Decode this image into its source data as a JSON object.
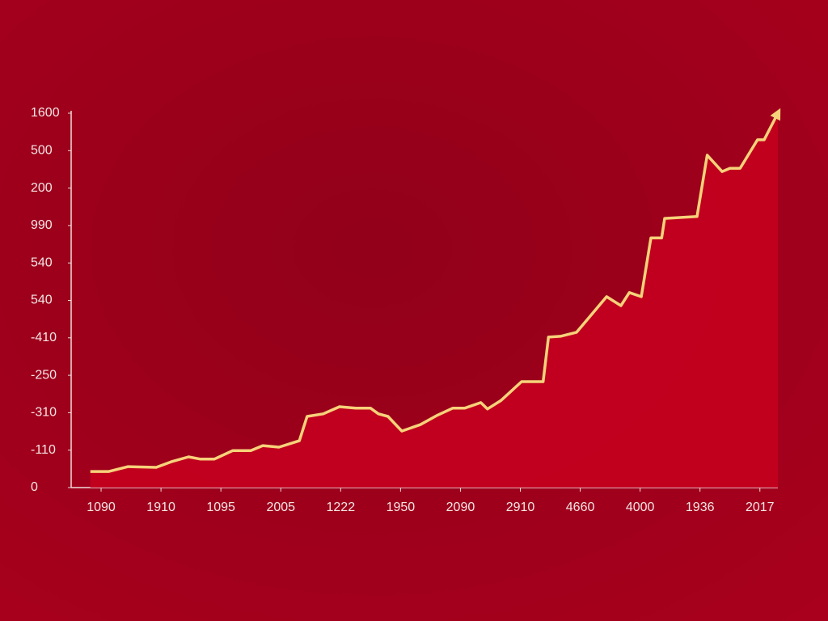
{
  "chart_data": {
    "type": "area",
    "x": [
      0.82,
      1.13,
      1.45,
      1.92,
      2.17,
      2.46,
      2.66,
      2.89,
      3.2,
      3.5,
      3.7,
      3.97,
      4.31,
      4.44,
      4.71,
      4.98,
      5.25,
      5.5,
      5.63,
      5.79,
      6.02,
      6.33,
      6.6,
      6.87,
      7.07,
      7.34,
      7.45,
      7.68,
      8.02,
      8.38,
      8.47,
      8.67,
      8.94,
      9.44,
      9.68,
      9.82,
      10.02,
      10.18,
      10.36,
      10.41,
      10.95,
      11.12,
      11.37,
      11.5,
      11.67,
      11.96,
      12.07,
      12.3
    ],
    "values": [
      0.43,
      0.43,
      0.56,
      0.54,
      0.69,
      0.82,
      0.76,
      0.76,
      0.99,
      0.99,
      1.12,
      1.08,
      1.25,
      1.9,
      1.97,
      2.16,
      2.12,
      2.12,
      1.97,
      1.9,
      1.51,
      1.68,
      1.92,
      2.12,
      2.12,
      2.27,
      2.1,
      2.33,
      2.83,
      2.83,
      4.02,
      4.04,
      4.15,
      5.1,
      4.86,
      5.21,
      5.1,
      6.67,
      6.67,
      7.19,
      7.24,
      8.88,
      8.44,
      8.53,
      8.53,
      9.29,
      9.29,
      10.0
    ],
    "color": "#f6d27a",
    "fill": "#c4001f",
    "xlim": [
      0.5,
      12.3
    ],
    "xticks": [
      {
        "value": 1,
        "label": "1090"
      },
      {
        "value": 2,
        "label": "1910"
      },
      {
        "value": 3,
        "label": "1095"
      },
      {
        "value": 4,
        "label": "2005"
      },
      {
        "value": 5,
        "label": "1222"
      },
      {
        "value": 6,
        "label": "1950"
      },
      {
        "value": 7,
        "label": "2090"
      },
      {
        "value": 8,
        "label": "2910"
      },
      {
        "value": 9,
        "label": "4660"
      },
      {
        "value": 10,
        "label": "4000"
      },
      {
        "value": 11,
        "label": "1936"
      },
      {
        "value": 12,
        "label": "2017"
      }
    ],
    "ylim": [
      0,
      10
    ],
    "yticks": [
      0,
      {
        "value": 1,
        "label": "-110"
      },
      {
        "value": 2,
        "label": "-310"
      },
      {
        "value": 3,
        "label": "-250"
      },
      {
        "value": 4,
        "label": "-410"
      },
      {
        "value": 5,
        "label": "540"
      },
      {
        "value": 6,
        "label": "540"
      },
      {
        "value": 7,
        "label": "990"
      },
      {
        "value": 8,
        "label": "200"
      },
      {
        "value": 9,
        "label": "500"
      },
      {
        "value": 10,
        "label": "1600"
      }
    ],
    "grid": false
  }
}
